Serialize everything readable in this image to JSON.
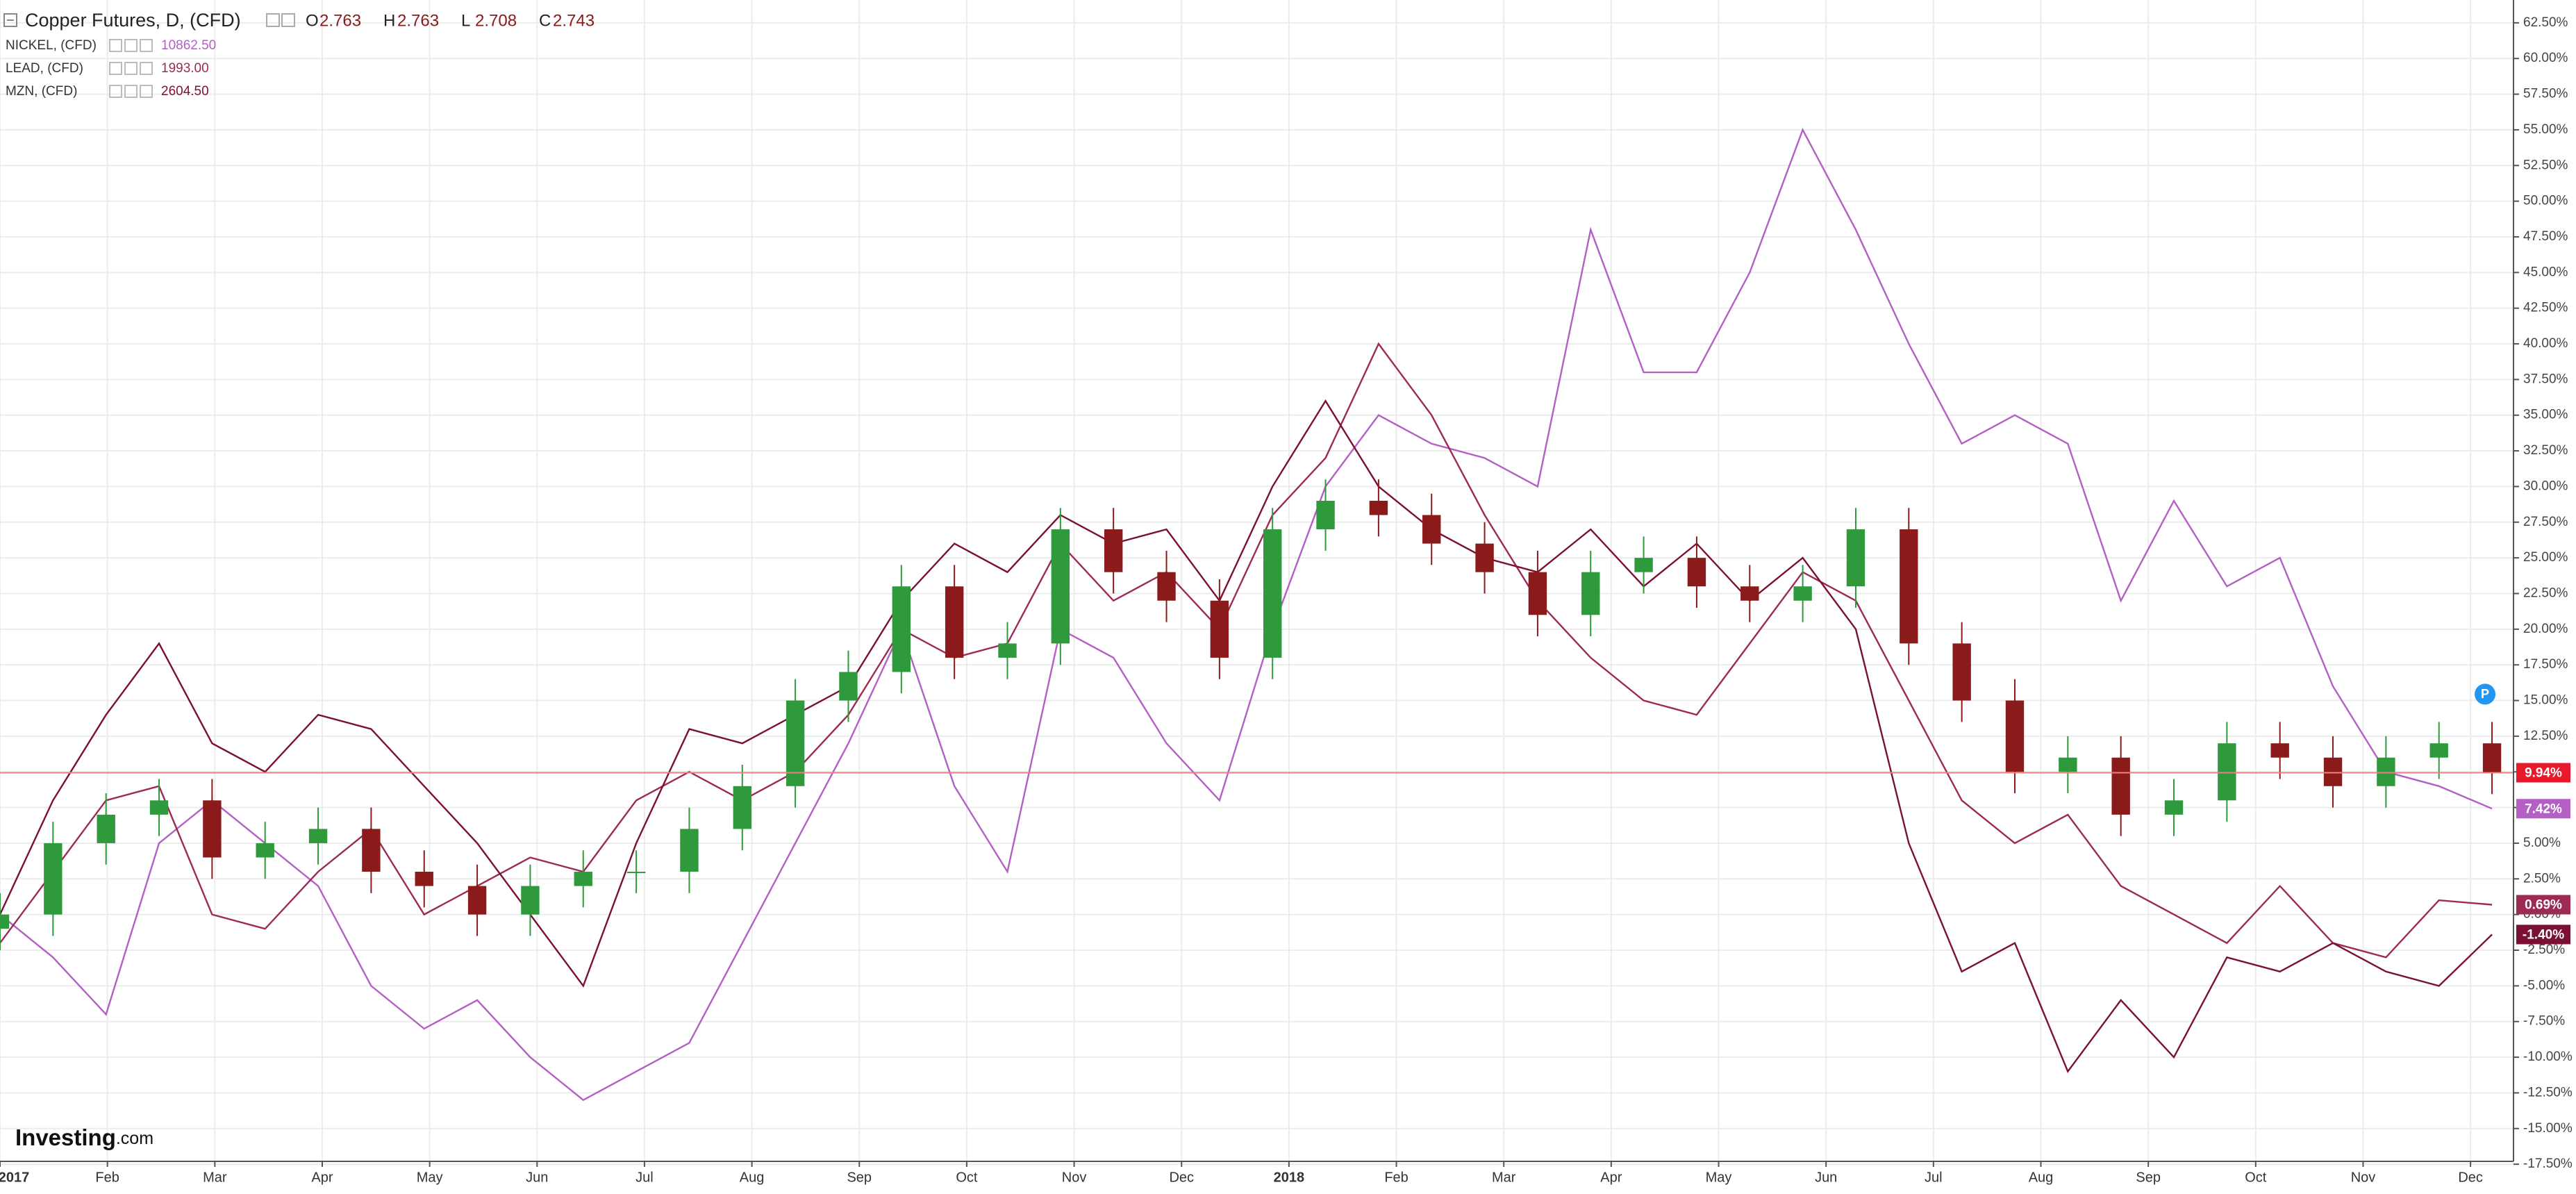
{
  "chart_data": {
    "type": "candlestick-compare",
    "candles": {
      "name": "Copper Futures, D, (CFD)",
      "color_up": "#2e9a3c",
      "color_down": "#8b1a1a",
      "price_line_color": "#f08080",
      "label_color": "#e8192c",
      "value_label": "9.94%",
      "open": [
        -1,
        0,
        5,
        7,
        8,
        4,
        5,
        6,
        3,
        2,
        0,
        2,
        3,
        3,
        6,
        9,
        15,
        17,
        23,
        18,
        19,
        27,
        24,
        22,
        18,
        27,
        29,
        28,
        26,
        24,
        21,
        24,
        25,
        23,
        22,
        23,
        27,
        19,
        15,
        10,
        11,
        7,
        8,
        12,
        11,
        9,
        11,
        12
      ],
      "high": [
        1.5,
        6.5,
        8.5,
        9.5,
        9.5,
        6.5,
        7.5,
        7.5,
        4.5,
        3.5,
        3.5,
        4.5,
        4.5,
        7.5,
        10.5,
        16.5,
        18.5,
        24.5,
        24.5,
        20.5,
        28.5,
        28.5,
        25.5,
        23.5,
        28.5,
        30.5,
        30.5,
        29.5,
        27.5,
        25.5,
        25.5,
        26.5,
        26.5,
        24.5,
        24.5,
        28.5,
        28.5,
        20.5,
        16.5,
        12.5,
        12.5,
        9.5,
        13.5,
        13.5,
        12.5,
        12.5,
        13.5,
        13.5
      ],
      "low": [
        -2.5,
        -1.5,
        3.5,
        5.5,
        2.5,
        2.5,
        3.5,
        1.5,
        0.5,
        -1.5,
        -1.5,
        0.5,
        1.5,
        1.5,
        4.5,
        7.5,
        13.5,
        15.5,
        16.5,
        16.5,
        17.5,
        22.5,
        20.5,
        16.5,
        16.5,
        25.5,
        26.5,
        24.5,
        22.5,
        19.5,
        19.5,
        22.5,
        21.5,
        20.5,
        20.5,
        21.5,
        17.5,
        13.5,
        8.5,
        8.5,
        5.5,
        5.5,
        6.5,
        9.5,
        7.5,
        7.5,
        9.5,
        8.44
      ],
      "close": [
        0,
        5,
        7,
        8,
        4,
        5,
        6,
        3,
        2,
        0,
        2,
        3,
        3,
        6,
        9,
        15,
        17,
        23,
        18,
        19,
        27,
        24,
        22,
        18,
        27,
        29,
        28,
        26,
        24,
        21,
        24,
        25,
        23,
        22,
        23,
        27,
        19,
        15,
        10,
        11,
        7,
        8,
        12,
        11,
        9,
        11,
        12,
        9.94
      ]
    },
    "ohlc": {
      "labels": [
        "O",
        "H",
        "L",
        "C"
      ],
      "values": [
        2.763,
        2.763,
        2.708,
        2.743
      ]
    },
    "series": [
      {
        "name": "NICKEL, (CFD)",
        "price": "10862.50",
        "color": "#b35fc4",
        "value_label": "7.42%",
        "values": [
          0,
          -3,
          -7,
          5,
          8,
          5,
          2,
          -5,
          -8,
          -6,
          -10,
          -13,
          -11,
          -9,
          -2,
          5,
          12,
          20,
          9,
          3,
          20,
          18,
          12,
          8,
          20,
          30,
          35,
          33,
          32,
          30,
          48,
          38,
          38,
          45,
          55,
          48,
          40,
          33,
          35,
          33,
          22,
          29,
          23,
          25,
          16,
          10,
          9,
          7.42
        ]
      },
      {
        "name": "LEAD, (CFD)",
        "price": "1993.00",
        "color": "#9c2a55",
        "value_label": "0.69%",
        "values": [
          -2,
          3,
          8,
          9,
          0,
          -1,
          3,
          6,
          0,
          2,
          4,
          3,
          8,
          10,
          8,
          10,
          14,
          20,
          18,
          19,
          26,
          22,
          24,
          20,
          28,
          32,
          40,
          35,
          28,
          22,
          18,
          15,
          14,
          19,
          24,
          22,
          15,
          8,
          5,
          7,
          2,
          0,
          -2,
          2,
          -2,
          -3,
          1,
          0.69
        ]
      },
      {
        "name": "MZN, (CFD)",
        "price": "2604.50",
        "color": "#7a1033",
        "value_label": "-1.40%",
        "values": [
          0,
          8,
          14,
          19,
          12,
          10,
          14,
          13,
          9,
          5,
          0,
          -5,
          5,
          13,
          12,
          14,
          16,
          22,
          26,
          24,
          28,
          26,
          27,
          22,
          30,
          36,
          30,
          27,
          25,
          24,
          27,
          23,
          26,
          22,
          25,
          20,
          5,
          -4,
          -2,
          -11,
          -6,
          -10,
          -3,
          -4,
          -2,
          -4,
          -5,
          -1.4
        ]
      }
    ],
    "marker": {
      "label": "P",
      "color": "#2196f3"
    },
    "xlim": [
      0,
      23.4
    ],
    "xspan": [
      0,
      23.2
    ],
    "xticks": [
      {
        "value": 0,
        "label": "2017"
      },
      {
        "value": 1,
        "label": "Feb"
      },
      {
        "value": 2,
        "label": "Mar"
      },
      {
        "value": 3,
        "label": "Apr"
      },
      {
        "value": 4,
        "label": "May"
      },
      {
        "value": 5,
        "label": "Jun"
      },
      {
        "value": 6,
        "label": "Jul"
      },
      {
        "value": 7,
        "label": "Aug"
      },
      {
        "value": 8,
        "label": "Sep"
      },
      {
        "value": 9,
        "label": "Oct"
      },
      {
        "value": 10,
        "label": "Nov"
      },
      {
        "value": 11,
        "label": "Dec"
      },
      {
        "value": 12,
        "label": "2018"
      },
      {
        "value": 13,
        "label": "Feb"
      },
      {
        "value": 14,
        "label": "Mar"
      },
      {
        "value": 15,
        "label": "Apr"
      },
      {
        "value": 16,
        "label": "May"
      },
      {
        "value": 17,
        "label": "Jun"
      },
      {
        "value": 18,
        "label": "Jul"
      },
      {
        "value": 19,
        "label": "Aug"
      },
      {
        "value": 20,
        "label": "Sep"
      },
      {
        "value": 21,
        "label": "Oct"
      },
      {
        "value": 22,
        "label": "Nov"
      },
      {
        "value": 23,
        "label": "Dec"
      }
    ],
    "ylim": [
      -17.3,
      64.1
    ],
    "yticks": [
      {
        "value": 62.5,
        "label": "62.50%"
      },
      {
        "value": 60,
        "label": "60.00%"
      },
      {
        "value": 57.5,
        "label": "57.50%"
      },
      {
        "value": 55,
        "label": "55.00%"
      },
      {
        "value": 52.5,
        "label": "52.50%"
      },
      {
        "value": 50,
        "label": "50.00%"
      },
      {
        "value": 47.5,
        "label": "47.50%"
      },
      {
        "value": 45,
        "label": "45.00%"
      },
      {
        "value": 42.5,
        "label": "42.50%"
      },
      {
        "value": 40,
        "label": "40.00%"
      },
      {
        "value": 37.5,
        "label": "37.50%"
      },
      {
        "value": 35,
        "label": "35.00%"
      },
      {
        "value": 32.5,
        "label": "32.50%"
      },
      {
        "value": 30,
        "label": "30.00%"
      },
      {
        "value": 27.5,
        "label": "27.50%"
      },
      {
        "value": 25,
        "label": "25.00%"
      },
      {
        "value": 22.5,
        "label": "22.50%"
      },
      {
        "value": 20,
        "label": "20.00%"
      },
      {
        "value": 17.5,
        "label": "17.50%"
      },
      {
        "value": 15,
        "label": "15.00%"
      },
      {
        "value": 12.5,
        "label": "12.50%"
      },
      {
        "value": 10,
        "label": "10.00%"
      },
      {
        "value": 7.5,
        "label": "7.50%"
      },
      {
        "value": 5,
        "label": "5.00%"
      },
      {
        "value": 2.5,
        "label": "2.50%"
      },
      {
        "value": 0,
        "label": "0.00%"
      },
      {
        "value": -2.5,
        "label": "-2.50%"
      },
      {
        "value": -5,
        "label": "-5.00%"
      },
      {
        "value": -7.5,
        "label": "-7.50%"
      },
      {
        "value": -10,
        "label": "-10.00%"
      },
      {
        "value": -12.5,
        "label": "-12.50%"
      },
      {
        "value": -15,
        "label": "-15.00%"
      },
      {
        "value": -17.5,
        "label": "-17.50%"
      }
    ],
    "grid": true,
    "watermark": "Investing",
    "watermark_suffix": ".com"
  }
}
